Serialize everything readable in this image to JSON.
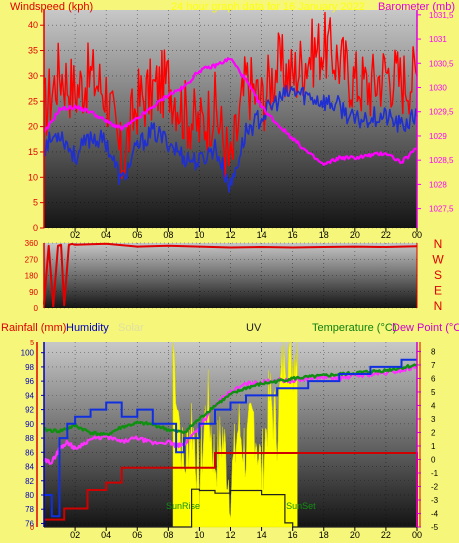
{
  "colors": {
    "background": "#f6f67a",
    "windspeed": "#ff0000",
    "wind_avg": "#1f2fd0",
    "barometer": "#ff00ff",
    "direction": "#e00000",
    "humidity": "#1030e0",
    "temperature": "#109010",
    "dewpoint": "#ff30ff",
    "rainfall": "#d00000",
    "solar": "#ffff00",
    "uv": "#202020",
    "axis_left_red": "#e00000",
    "axis_blue": "#0000c0",
    "axis_magenta": "#d000d0",
    "axis_red_right": "#e00000"
  },
  "chart_data": [
    {
      "type": "line",
      "title": "24 hour graph data for 16 January 2022",
      "left_axis_label": "Windspeed (kph)",
      "right_axis_label": "Barometer (mb)",
      "x_ticks": [
        "02",
        "04",
        "06",
        "08",
        "10",
        "12",
        "14",
        "16",
        "18",
        "20",
        "22",
        "00"
      ],
      "left_ticks": [
        "0",
        "5",
        "10",
        "15",
        "20",
        "25",
        "30",
        "35",
        "40"
      ],
      "left_ylim": [
        0,
        43
      ],
      "right_ticks": [
        "1027,5",
        "1028",
        "1028,5",
        "1029",
        "1029,5",
        "1030",
        "1030,5",
        "1031",
        "1031,5"
      ],
      "right_ylim": [
        1027.1,
        1031.6
      ],
      "x_range_hours": [
        0,
        24
      ],
      "series": [
        {
          "name": "Windspeed",
          "axis": "left",
          "x": [
            0,
            1,
            2,
            3,
            4,
            5,
            6,
            7,
            8,
            9,
            10,
            11,
            12,
            13,
            14,
            15,
            16,
            17,
            18,
            19,
            20,
            21,
            22,
            23,
            24
          ],
          "values": [
            23,
            31,
            27,
            30,
            27,
            13,
            25,
            27,
            29,
            23,
            20,
            24,
            12,
            29,
            25,
            32,
            30,
            34,
            36,
            33,
            29,
            28,
            31,
            29,
            30
          ]
        },
        {
          "name": "Wind average",
          "axis": "left",
          "x": [
            0,
            1,
            2,
            3,
            4,
            5,
            6,
            7,
            8,
            9,
            10,
            11,
            12,
            13,
            14,
            15,
            16,
            17,
            18,
            19,
            20,
            21,
            22,
            23,
            24
          ],
          "values": [
            16,
            19,
            14,
            18,
            17,
            9,
            16,
            19,
            17,
            14,
            13,
            16,
            8,
            19,
            22,
            25,
            27,
            26,
            25,
            24,
            21,
            22,
            22,
            20,
            22
          ]
        },
        {
          "name": "Barometer",
          "axis": "right",
          "x": [
            0,
            1,
            2,
            3,
            4,
            5,
            6,
            7,
            8,
            9,
            10,
            11,
            12,
            13,
            14,
            15,
            16,
            17,
            18,
            19,
            20,
            21,
            22,
            23,
            24
          ],
          "values": [
            1029.05,
            1029.55,
            1029.6,
            1029.5,
            1029.3,
            1029.15,
            1029.35,
            1029.6,
            1029.85,
            1030.0,
            1030.35,
            1030.45,
            1030.6,
            1030.15,
            1029.6,
            1029.25,
            1028.95,
            1028.65,
            1028.4,
            1028.55,
            1028.55,
            1028.6,
            1028.65,
            1028.45,
            1028.75
          ]
        }
      ]
    },
    {
      "type": "line",
      "compass_labels": [
        "N",
        "W",
        "S",
        "E",
        "N"
      ],
      "left_ticks": [
        "0",
        "90",
        "180",
        "270",
        "360"
      ],
      "ylim": [
        0,
        360
      ],
      "series": [
        {
          "name": "Wind direction",
          "x": [
            0,
            0.3,
            0.6,
            0.9,
            1.1,
            1.3,
            1.6,
            1.8,
            2,
            4,
            6,
            8,
            10,
            12,
            14,
            16,
            18,
            20,
            22,
            24
          ],
          "values": [
            20,
            345,
            10,
            345,
            350,
            15,
            350,
            355,
            350,
            356,
            340,
            345,
            340,
            335,
            338,
            335,
            338,
            340,
            338,
            342
          ]
        }
      ]
    },
    {
      "type": "line",
      "left_axis_labels": [
        "Rainfall (mm)",
        "Humidity",
        "Solar"
      ],
      "center_label": "UV",
      "right_axis_labels": [
        "Temperature (°C)",
        "Dew Point (°C)"
      ],
      "annotations": [
        "SunRise",
        "SunSet"
      ],
      "x_ticks": [
        "02",
        "04",
        "06",
        "08",
        "10",
        "12",
        "14",
        "16",
        "18",
        "20",
        "22",
        "00"
      ],
      "rain_ticks": [
        "0",
        "5"
      ],
      "humidity_ticks": [
        "76",
        "78",
        "80",
        "82",
        "84",
        "86",
        "88",
        "90",
        "92",
        "94",
        "96",
        "98",
        "100"
      ],
      "humidity_ylim": [
        75.5,
        101.5
      ],
      "temp_ticks": [
        "-5",
        "-4",
        "-3",
        "-2",
        "-1",
        "0",
        "1",
        "2",
        "3",
        "4",
        "5",
        "6",
        "7",
        "8"
      ],
      "temp_ylim": [
        -5,
        8.7
      ],
      "rain_ylim": [
        0,
        5
      ],
      "series": [
        {
          "name": "Humidity",
          "axis": "humidity",
          "x": [
            0,
            0.5,
            1,
            1.5,
            2,
            3,
            4,
            5,
            6,
            7,
            8,
            8.5,
            9,
            10,
            11,
            12,
            13,
            14,
            15,
            16,
            17,
            18,
            19,
            20,
            21,
            22,
            23,
            24
          ],
          "values": [
            80,
            77,
            88,
            90,
            91,
            92,
            93,
            91,
            92,
            90,
            90,
            86,
            88,
            90,
            92,
            93,
            94,
            94,
            95,
            95,
            96,
            96,
            97,
            97,
            98,
            98,
            99,
            99
          ]
        },
        {
          "name": "Temperature",
          "axis": "temp",
          "x": [
            0,
            1,
            2,
            3,
            4,
            5,
            6,
            7,
            8,
            9,
            10,
            11,
            12,
            13,
            14,
            15,
            16,
            17,
            18,
            19,
            20,
            21,
            22,
            23,
            24
          ],
          "values": [
            2.2,
            2.1,
            2.5,
            2.0,
            1.8,
            2.4,
            2.7,
            2.6,
            2.2,
            2.0,
            3.0,
            4.0,
            4.8,
            5.3,
            5.6,
            5.8,
            6.0,
            6.1,
            6.2,
            6.3,
            6.4,
            6.5,
            6.6,
            6.8,
            7.0
          ]
        },
        {
          "name": "Dew Point",
          "axis": "temp",
          "x": [
            0,
            0.5,
            1,
            1.5,
            2,
            3,
            4,
            5,
            6,
            7,
            8,
            8.5,
            9,
            10,
            11,
            12,
            13,
            14,
            15,
            16,
            17,
            18,
            19,
            20,
            21,
            22,
            23,
            24
          ],
          "values": [
            -0.1,
            -0.2,
            0.8,
            1.3,
            0.8,
            1.5,
            1.7,
            1.3,
            1.6,
            1.2,
            1.3,
            1.0,
            1.1,
            2.4,
            4.0,
            5.0,
            5.6,
            5.7,
            5.9,
            5.8,
            6.0,
            6.1,
            6.0,
            6.2,
            6.3,
            6.4,
            6.6,
            6.9
          ]
        },
        {
          "name": "Rainfall",
          "axis": "rain",
          "x": [
            0,
            1,
            1.3,
            2,
            2.8,
            3.5,
            4,
            5,
            6,
            7,
            8,
            9,
            10,
            11,
            12,
            13,
            14,
            15,
            16,
            17,
            18,
            19,
            20,
            21,
            22,
            23,
            24
          ],
          "values": [
            0.2,
            0.2,
            0.5,
            0.5,
            1.0,
            1.0,
            1.2,
            1.6,
            1.6,
            1.6,
            1.6,
            1.6,
            1.6,
            2.0,
            2.0,
            2.0,
            2.0,
            2.0,
            2.0,
            2.0,
            2.0,
            2.0,
            2.0,
            2.0,
            2.0,
            2.0,
            0
          ]
        },
        {
          "name": "UV",
          "axis": "temp",
          "x": [
            0,
            9.2,
            9.5,
            10,
            11,
            12,
            13,
            14,
            15,
            15.5,
            16,
            24
          ],
          "values": [
            -5,
            -5,
            -2.2,
            -2.3,
            -2.5,
            -2.3,
            -2.3,
            -2.6,
            -2.6,
            -4.7,
            -5,
            -5
          ]
        }
      ],
      "solar_ylim": [
        0,
        100
      ],
      "solar": {
        "x": [
          8.3,
          9,
          9.5,
          10,
          10.5,
          11,
          11.5,
          12,
          12.5,
          13,
          13.5,
          14,
          14.5,
          15,
          15.5,
          16,
          16.3
        ],
        "values": [
          100,
          30,
          60,
          25,
          70,
          35,
          50,
          20,
          55,
          40,
          60,
          30,
          70,
          55,
          100,
          90,
          100
        ]
      },
      "sunrise_hour": 8.3,
      "sunset_hour": 16.4
    }
  ]
}
